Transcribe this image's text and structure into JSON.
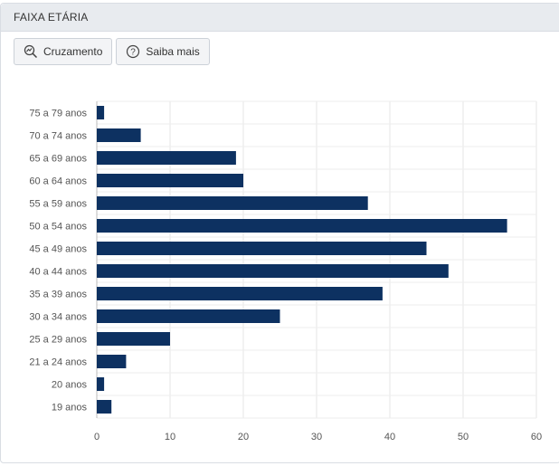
{
  "header": {
    "title": "FAIXA ETÁRIA"
  },
  "toolbar": {
    "cross_label": "Cruzamento",
    "cross_icon": "magnifier-chart-icon",
    "info_label": "Saiba mais",
    "info_icon": "question-circle-icon"
  },
  "chart_data": {
    "type": "bar",
    "orientation": "horizontal",
    "categories": [
      "75 a 79 anos",
      "70 a 74 anos",
      "65 a 69 anos",
      "60 a 64 anos",
      "55 a 59 anos",
      "50 a 54 anos",
      "45 a 49 anos",
      "40 a 44 anos",
      "35 a 39 anos",
      "30 a 34 anos",
      "25 a 29 anos",
      "21 a 24 anos",
      "20 anos",
      "19 anos"
    ],
    "values": [
      1,
      6,
      19,
      20,
      37,
      56,
      45,
      48,
      39,
      25,
      10,
      4,
      1,
      2
    ],
    "xlim": [
      0,
      60
    ],
    "xticks": [
      0,
      10,
      20,
      30,
      40,
      50,
      60
    ],
    "bar_color": "#0d3161",
    "grid": true
  }
}
